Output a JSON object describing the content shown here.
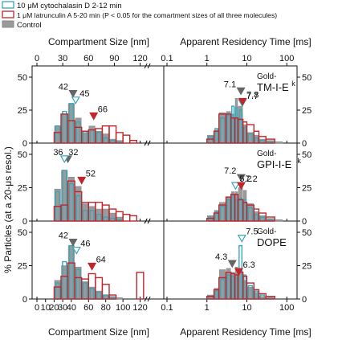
{
  "legend": {
    "items": [
      {
        "label": "10 μM cytochalasin D 2-12 min",
        "kind": "cyto",
        "color": "#3aa6b8"
      },
      {
        "label": "1 μM latrunculin A 5-20 min (P < 0.05 for the comartment sizes of all three molecules)",
        "kind": "latA",
        "color": "#c0272d"
      },
      {
        "label": "Control",
        "kind": "control",
        "color": "#9a9a9a"
      }
    ]
  },
  "axes": {
    "left_top_title": "Compartment Size [nm]",
    "right_top_title": "Apparent Residency Time [ms]",
    "left_bottom_title": "Compartment Size [nm]",
    "right_bottom_title": "Apparent Residency Time [ms]",
    "y_title": "% Particles (at a 20-μs resol.)",
    "left_ticks": [
      "0",
      "30",
      "60",
      "90",
      "120"
    ],
    "left_ticks_bottom": [
      "0",
      "10",
      "20",
      "30",
      "40",
      "60",
      "80",
      "100",
      "120"
    ],
    "right_ticks": [
      "0.1",
      "1",
      "10",
      "100"
    ],
    "right_ticks_bottom": [
      "0.1",
      "1",
      "10",
      "100"
    ],
    "y_ticks": [
      "0",
      "25",
      "50"
    ]
  },
  "chart_data": [
    {
      "type": "bar",
      "panel": "TM-I-Ek compartment size",
      "xlabel": "Compartment Size [nm]",
      "ylabel": "% Particles (at a 20-μs resol.)",
      "xlim": [
        0,
        140
      ],
      "ylim": [
        0,
        50
      ],
      "bin_edges": [
        20,
        28,
        36,
        44,
        52,
        60,
        68,
        76,
        84,
        92,
        100,
        108,
        116,
        124
      ],
      "series": [
        {
          "name": "Control",
          "values": [
            13,
            22,
            30,
            19,
            8,
            13,
            9,
            7,
            3,
            2,
            0,
            0,
            0
          ]
        },
        {
          "name": "10 μM cytochalasin D 2-12 min",
          "values": [
            13,
            24,
            30,
            16,
            9,
            10,
            8,
            4,
            2,
            1,
            0,
            0,
            0
          ]
        },
        {
          "name": "1 μM latrunculin A 5-20 min (P < 0.05 for the comartment sizes of all three molecules)",
          "values": [
            8,
            22,
            17,
            12,
            9,
            10,
            11,
            13,
            13,
            8,
            6,
            2,
            0
          ]
        }
      ],
      "annotations": [
        {
          "text": "42",
          "x": 42,
          "y": 35,
          "series": "Control"
        },
        {
          "text": "45",
          "x": 45,
          "y": 30,
          "series": "10 μM cytochalasin D 2-12 min"
        },
        {
          "text": "66",
          "x": 66,
          "y": 18,
          "series": "1 μM latrunculin A 5-20 min (P < 0.05 for the comartment sizes of all three molecules)"
        }
      ]
    },
    {
      "type": "bar",
      "panel": "TM-I-Ek residency time",
      "xlabel": "Apparent Residency Time [ms]",
      "xscale": "log",
      "xlim": [
        0.1,
        150
      ],
      "ylim": [
        0,
        50
      ],
      "molecule_label": [
        "Gold-",
        "TM-I-E",
        "k"
      ],
      "bin_edges": [
        1,
        1.5,
        2,
        3,
        4,
        5,
        6,
        8,
        10,
        15,
        20,
        30,
        50,
        80
      ],
      "series": [
        {
          "name": "Control",
          "values": [
            6,
            10,
            23,
            24,
            22,
            34,
            28,
            14,
            8,
            6,
            3,
            2,
            1
          ]
        },
        {
          "name": "10 μM cytochalasin D 2-12 min",
          "values": [
            5,
            11,
            19,
            21,
            28,
            27,
            25,
            12,
            7,
            4,
            2,
            1,
            0
          ]
        },
        {
          "name": "1 μM latrunculin A 5-20 min (P < 0.05 for the comartment sizes of all three molecules)",
          "values": [
            3,
            9,
            22,
            22,
            19,
            19,
            18,
            16,
            14,
            9,
            5,
            3,
            0
          ]
        }
      ],
      "annotations": [
        {
          "text": "7.1",
          "x": 7.1,
          "y": 37,
          "series": "Control"
        },
        {
          "text": "7.7",
          "x": 7.7,
          "y": 28,
          "series": "10 μM cytochalasin D 2-12 min"
        },
        {
          "text": "7.8",
          "x": 7.8,
          "y": 29,
          "series": "1 μM latrunculin A 5-20 min (P < 0.05 for the comartment sizes of all three molecules)"
        }
      ]
    },
    {
      "type": "bar",
      "panel": "GPI-I-Ek compartment size",
      "xlabel": "Compartment Size [nm]",
      "ylabel": "% Particles (at a 20-μs resol.)",
      "xlim": [
        0,
        140
      ],
      "ylim": [
        0,
        50
      ],
      "bin_edges": [
        20,
        28,
        36,
        44,
        52,
        60,
        68,
        76,
        84,
        92,
        100,
        108,
        116,
        124
      ],
      "series": [
        {
          "name": "Control",
          "values": [
            24,
            38,
            33,
            26,
            13,
            11,
            9,
            9,
            6,
            3,
            0,
            0,
            0
          ]
        },
        {
          "name": "10 μM cytochalasin D 2-12 min",
          "values": [
            22,
            38,
            28,
            19,
            8,
            8,
            5,
            3,
            2,
            1,
            0,
            0,
            0
          ]
        },
        {
          "name": "1 μM latrunculin A 5-20 min (P < 0.05 for the comartment sizes of all three molecules)",
          "values": [
            11,
            12,
            30,
            22,
            14,
            14,
            14,
            12,
            9,
            7,
            5,
            4,
            0
          ]
        }
      ],
      "annotations": [
        {
          "text": "36",
          "x": 36,
          "y": 44,
          "series": "Control"
        },
        {
          "text": "32",
          "x": 32,
          "y": 44,
          "series": "10 μM cytochalasin D 2-12 min"
        },
        {
          "text": "52",
          "x": 52,
          "y": 28,
          "series": "1 μM latrunculin A 5-20 min (P < 0.05 for the comartment sizes of all three molecules)"
        }
      ]
    },
    {
      "type": "bar",
      "panel": "GPI-I-Ek residency time",
      "xlabel": "Apparent Residency Time [ms]",
      "xscale": "log",
      "xlim": [
        0.1,
        150
      ],
      "ylim": [
        0,
        50
      ],
      "molecule_label": [
        "Gold-",
        "GPI-I-E",
        "k"
      ],
      "bin_edges": [
        1,
        1.5,
        2,
        3,
        4,
        5,
        6,
        8,
        10,
        15,
        20,
        30,
        50,
        80
      ],
      "series": [
        {
          "name": "Control",
          "values": [
            4,
            8,
            14,
            18,
            22,
            22,
            25,
            23,
            13,
            7,
            4,
            2,
            1
          ]
        },
        {
          "name": "10 μM cytochalasin D 2-12 min",
          "values": [
            3,
            7,
            11,
            16,
            19,
            16,
            17,
            16,
            10,
            5,
            3,
            1,
            0
          ]
        },
        {
          "name": "1 μM latrunculin A 5-20 min (P < 0.05 for the comartment sizes of all three molecules)",
          "values": [
            2,
            6,
            12,
            18,
            20,
            20,
            16,
            14,
            12,
            9,
            6,
            3,
            0
          ]
        }
      ],
      "annotations": [
        {
          "text": "7.2",
          "x": 7.2,
          "y": 30,
          "series": "Control"
        },
        {
          "text": "5.2",
          "x": 5.2,
          "y": 24,
          "series": "10 μM cytochalasin D 2-12 min"
        },
        {
          "text": "7.2",
          "x": 7.2,
          "y": 24,
          "series": "1 μM latrunculin A 5-20 min (P < 0.05 for the comartment sizes of all three molecules)"
        }
      ]
    },
    {
      "type": "bar",
      "panel": "DOPE compartment size",
      "xlabel": "Compartment Size [nm]",
      "ylabel": "% Particles (at a 20-μs resol.)",
      "xlim": [
        0,
        140
      ],
      "ylim": [
        0,
        50
      ],
      "bin_edges": [
        20,
        28,
        36,
        44,
        52,
        60,
        68,
        76,
        84,
        92,
        100,
        108,
        116,
        124
      ],
      "series": [
        {
          "name": "Control",
          "values": [
            14,
            25,
            40,
            24,
            13,
            9,
            6,
            3,
            2,
            1,
            0,
            0,
            0
          ]
        },
        {
          "name": "10 μM cytochalasin D 2-12 min",
          "values": [
            12,
            28,
            40,
            22,
            12,
            8,
            5,
            3,
            1,
            0,
            0,
            0,
            0
          ]
        },
        {
          "name": "1 μM latrunculin A 5-20 min (P < 0.05 for the comartment sizes of all three molecules)",
          "values": [
            9,
            17,
            27,
            16,
            15,
            19,
            16,
            11,
            3,
            0,
            0,
            0,
            20
          ]
        }
      ],
      "annotations": [
        {
          "text": "42",
          "x": 42,
          "y": 40,
          "series": "Control"
        },
        {
          "text": "46",
          "x": 46,
          "y": 34,
          "series": "10 μM cytochalasin D 2-12 min"
        },
        {
          "text": "64",
          "x": 64,
          "y": 22,
          "series": "1 μM latrunculin A 5-20 min (P < 0.05 for the comartment sizes of all three molecules)"
        }
      ]
    },
    {
      "type": "bar",
      "panel": "DOPE residency time",
      "xlabel": "Apparent Residency Time [ms]",
      "xscale": "log",
      "xlim": [
        0.1,
        150
      ],
      "ylim": [
        0,
        50
      ],
      "molecule_label": [
        "Gold-",
        "DOPE",
        ""
      ],
      "bin_edges": [
        1,
        1.5,
        2,
        3,
        4,
        5,
        6,
        8,
        10,
        15,
        20,
        30,
        50,
        80
      ],
      "series": [
        {
          "name": "Control",
          "values": [
            3,
            8,
            22,
            23,
            20,
            24,
            21,
            14,
            9,
            5,
            2,
            1,
            0
          ]
        },
        {
          "name": "10 μM cytochalasin D 2-12 min",
          "values": [
            2,
            6,
            15,
            18,
            17,
            16,
            40,
            18,
            10,
            6,
            3,
            1,
            0
          ]
        },
        {
          "name": "1 μM latrunculin A 5-20 min (P < 0.05 for the comartment sizes of all three molecules)",
          "values": [
            2,
            7,
            16,
            20,
            19,
            18,
            20,
            17,
            12,
            7,
            4,
            2,
            0
          ]
        }
      ],
      "annotations": [
        {
          "text": "4.3",
          "x": 4.3,
          "y": 24,
          "series": "Control"
        },
        {
          "text": "7.5",
          "x": 7.5,
          "y": 43,
          "series": "10 μM cytochalasin D 2-12 min"
        },
        {
          "text": "6.3",
          "x": 6.3,
          "y": 18,
          "series": "1 μM latrunculin A 5-20 min (P < 0.05 for the comartment sizes of all three molecules)"
        }
      ]
    }
  ]
}
